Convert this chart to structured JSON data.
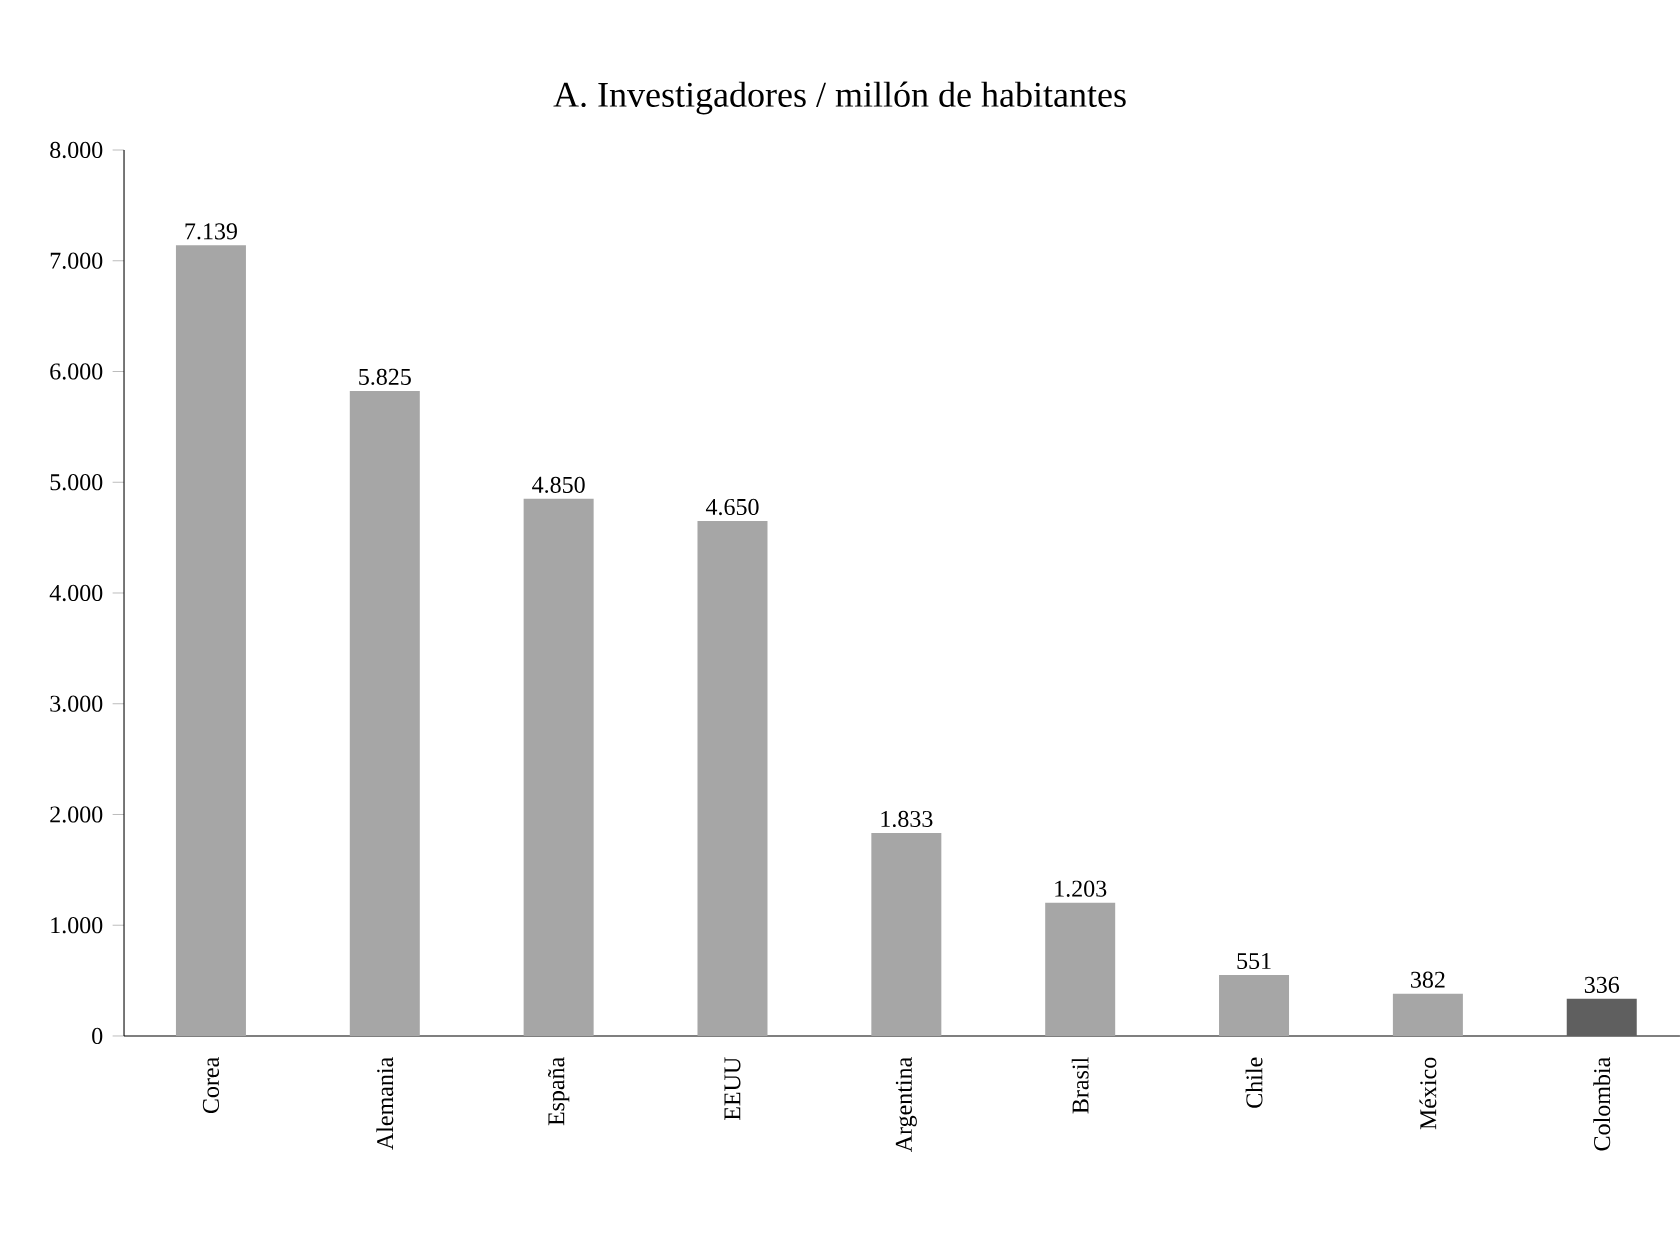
{
  "chart_data": {
    "type": "bar",
    "title": "A. Investigadores / millón de habitantes",
    "categories": [
      "Corea",
      "Alemania",
      "España",
      "EEUU",
      "Argentina",
      "Brasil",
      "Chile",
      "México",
      "Colombia"
    ],
    "values": [
      7139,
      5825,
      4850,
      4650,
      1833,
      1203,
      551,
      382,
      336
    ],
    "value_labels": [
      "7.139",
      "5.825",
      "4.850",
      "4.650",
      "1.833",
      "1.203",
      "551",
      "382",
      "336"
    ],
    "colors": [
      "#a6a6a6",
      "#a6a6a6",
      "#a6a6a6",
      "#a6a6a6",
      "#a6a6a6",
      "#a6a6a6",
      "#a6a6a6",
      "#a6a6a6",
      "#5f5f5f"
    ],
    "ylim": [
      0,
      8000
    ],
    "yticks": [
      0,
      {
        "value": 1000,
        "label": "1.000"
      },
      {
        "value": 2000,
        "label": "2.000"
      },
      {
        "value": 3000,
        "label": "3.000"
      },
      {
        "value": 4000,
        "label": "4.000"
      },
      {
        "value": 5000,
        "label": "5.000"
      },
      {
        "value": 6000,
        "label": "6.000"
      },
      {
        "value": 7000,
        "label": "7.000"
      },
      {
        "value": 8000,
        "label": "8.000"
      }
    ]
  }
}
